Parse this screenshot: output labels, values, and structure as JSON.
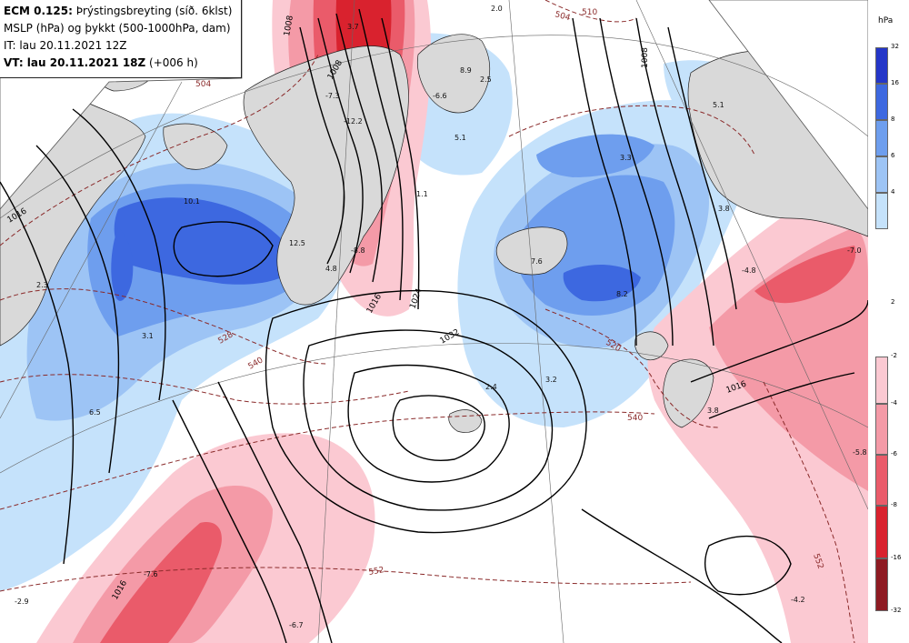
{
  "header": {
    "line1_bold": "ECM 0.125:",
    "line1_rest": " Þrýstingsbreyting (síð. 6klst)",
    "line2": "MSLP (hPa) og þykkt (500-1000hPa, dam)",
    "line3": "IT: lau 20.11.2021 12Z",
    "line4_bold": "VT: lau 20.11.2021 18Z",
    "line4_rest": " (+006 h)"
  },
  "legend": {
    "unit": "hPa",
    "positive": [
      {
        "label": "32",
        "color": "#2436c8"
      },
      {
        "label": "16",
        "color": "#3d68e0"
      },
      {
        "label": "8",
        "color": "#6e9eee"
      },
      {
        "label": "6",
        "color": "#9dc4f5"
      },
      {
        "label": "4",
        "color": "#c5e2fb"
      },
      {
        "label": "2",
        "color": ""
      }
    ],
    "negative": [
      {
        "label": "-2",
        "color": "#fbc9d2"
      },
      {
        "label": "-4",
        "color": "#f49aa7"
      },
      {
        "label": "-6",
        "color": "#ea5b6a"
      },
      {
        "label": "-8",
        "color": "#d9222e"
      },
      {
        "label": "-16",
        "color": "#8e1a22"
      },
      {
        "label": "-32",
        "color": ""
      }
    ]
  },
  "isobars": {
    "i1008a": "1008",
    "i1008b": "1008",
    "i1008c": "1008",
    "i1016a": "1016",
    "i1016b": "1016",
    "i1016c": "1016",
    "i1016d": "1016",
    "i1024": "1024",
    "i1032": "1032"
  },
  "thickness": {
    "t504a": "504",
    "t504b": "504",
    "t520": "520",
    "t528": "528",
    "t540a": "540",
    "t540b": "540",
    "t552a": "552",
    "t552b": "552",
    "t510": "510"
  },
  "pressure_changes": {
    "p1": "-7.3",
    "p2": "-12.2",
    "p3": "3.7",
    "p4": "8.9",
    "p5": "2.5",
    "p6": "-6.6",
    "p7": "5.1",
    "p8": "10.1",
    "p9": "12.5",
    "p10": "4.8",
    "p11": "-8.8",
    "p12": "1.1",
    "p13": "3.3",
    "p14": "7.6",
    "p15": "8.2",
    "p16": "-7.0",
    "p17": "-4.8",
    "p18": "2.3",
    "p19": "3.1",
    "p20": "6.5",
    "p21": "2.4",
    "p22": "3.2",
    "p23": "3.8",
    "p24": "-5.8",
    "p25": "-7.6",
    "p26": "-2.9",
    "p27": "-6.7",
    "p28": "-4.2",
    "p29": "2.0",
    "p30": "5.1",
    "p31": "3.8"
  }
}
